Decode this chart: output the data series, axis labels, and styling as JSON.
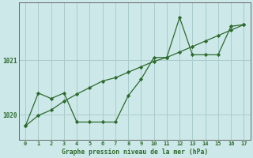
{
  "title": "Graphe pression niveau de la mer (hPa)",
  "x": [
    0,
    1,
    2,
    3,
    4,
    5,
    6,
    7,
    8,
    9,
    10,
    11,
    12,
    13,
    14,
    15,
    16,
    17
  ],
  "series_trend": [
    1019.8,
    1019.99,
    1020.09,
    1020.25,
    1020.38,
    1020.5,
    1020.62,
    1020.68,
    1020.78,
    1020.88,
    1020.98,
    1021.05,
    1021.15,
    1021.25,
    1021.35,
    1021.45,
    1021.55,
    1021.65
  ],
  "series_data": [
    1019.8,
    1020.4,
    1020.3,
    1020.4,
    1019.87,
    1019.87,
    1019.87,
    1019.87,
    1020.35,
    1020.65,
    1021.05,
    1021.05,
    1021.78,
    1021.1,
    1021.1,
    1021.1,
    1021.62,
    1021.65
  ],
  "line_color": "#2d6a2d",
  "bg_color": "#cce8e8",
  "grid_color": "#aacccc",
  "tick_color": "#2d6a2d",
  "label_color": "#2d6a2d",
  "yticks": [
    1020,
    1021
  ],
  "ylim": [
    1019.55,
    1022.05
  ],
  "xlim": [
    -0.5,
    17.5
  ]
}
